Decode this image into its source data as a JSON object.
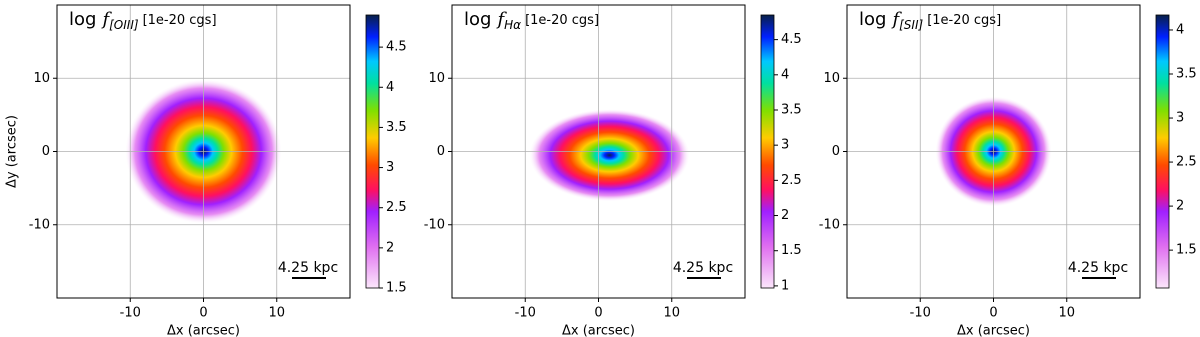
{
  "chart_data": [
    {
      "type": "image",
      "title": {
        "prefix": "log",
        "symbol": "f",
        "subscript": "[OIII]",
        "unit": "[1e-20 cgs]"
      },
      "xlabel": "Δx (arcsec)",
      "ylabel": "Δy (arcsec)",
      "xlim": [
        -20,
        20
      ],
      "ylim": [
        -20,
        20
      ],
      "xticks": [
        -10,
        0,
        10
      ],
      "yticks": [
        -10,
        0,
        10
      ],
      "grid": true,
      "clim": [
        1.5,
        4.9
      ],
      "cticks": [
        1.5,
        2.0,
        2.5,
        3.0,
        3.5,
        4.0,
        4.5
      ],
      "scalebar_label": "4.25 kpc"
    },
    {
      "type": "image",
      "title": {
        "prefix": "log",
        "symbol": "f",
        "subscript": "Hα",
        "unit": "[1e-20 cgs]"
      },
      "xlabel": "Δx (arcsec)",
      "xlim": [
        -20,
        20
      ],
      "ylim": [
        -20,
        20
      ],
      "xticks": [
        -10,
        0,
        10
      ],
      "yticks": [
        -10,
        0,
        10
      ],
      "grid": true,
      "clim": [
        0.97,
        4.85
      ],
      "cticks": [
        1.0,
        1.5,
        2.0,
        2.5,
        3.0,
        3.5,
        4.0,
        4.5
      ],
      "scalebar_label": "4.25 kpc"
    },
    {
      "type": "image",
      "title": {
        "prefix": "log",
        "symbol": "f",
        "subscript": "[SII]",
        "unit": "[1e-20 cgs]"
      },
      "xlabel": "Δx (arcsec)",
      "xlim": [
        -20,
        20
      ],
      "ylim": [
        -20,
        20
      ],
      "xticks": [
        -10,
        0,
        10
      ],
      "yticks": [
        -10,
        0,
        10
      ],
      "grid": true,
      "clim": [
        1.07,
        4.17
      ],
      "cticks": [
        1.5,
        2.0,
        2.5,
        3.0,
        3.5,
        4.0
      ],
      "scalebar_label": "4.25 kpc"
    }
  ]
}
